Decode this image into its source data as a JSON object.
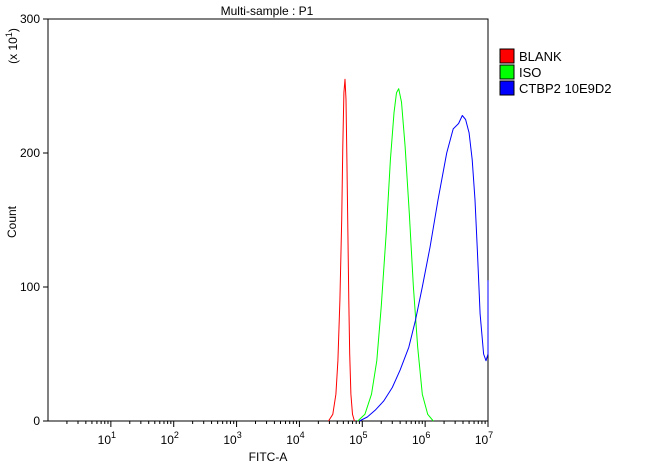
{
  "chart_data": {
    "type": "line",
    "title": "Multi-sample : P1",
    "xlabel": "FITC-A",
    "ylabel": "Count",
    "y_multiplier_label": "(x 10",
    "y_multiplier_exp": "1",
    "x_scale": "log",
    "xlim": [
      1,
      10000000
    ],
    "ylim": [
      0,
      300
    ],
    "x_ticks": [
      {
        "base": "10",
        "exp": "1",
        "value": 10
      },
      {
        "base": "10",
        "exp": "2",
        "value": 100
      },
      {
        "base": "10",
        "exp": "3",
        "value": 1000
      },
      {
        "base": "10",
        "exp": "4",
        "value": 10000
      },
      {
        "base": "10",
        "exp": "5",
        "value": 100000
      },
      {
        "base": "10",
        "exp": "6",
        "value": 1000000
      },
      {
        "base": "10",
        "exp": "7",
        "value": 10000000
      }
    ],
    "y_ticks": [
      "0",
      "100",
      "200",
      "300"
    ],
    "y_tick_values": [
      0,
      100,
      200,
      300
    ],
    "grid": false,
    "legend_position": "top-right",
    "series": [
      {
        "name": "BLANK",
        "color": "#ff0000",
        "x": [
          29000,
          34000,
          38000,
          41000,
          44000,
          47000,
          49000,
          51000,
          53000,
          55000,
          57000,
          59000,
          61000,
          63000,
          66000,
          70000,
          75000
        ],
        "y": [
          0,
          5,
          20,
          45,
          90,
          150,
          205,
          245,
          255,
          240,
          195,
          140,
          90,
          50,
          20,
          5,
          0
        ]
      },
      {
        "name": "ISO",
        "color": "#00ff00",
        "x": [
          85000,
          110000,
          140000,
          170000,
          200000,
          240000,
          280000,
          320000,
          350000,
          380000,
          420000,
          480000,
          560000,
          650000,
          760000,
          900000,
          1100000,
          1350000
        ],
        "y": [
          0,
          5,
          20,
          45,
          85,
          140,
          195,
          230,
          245,
          248,
          238,
          205,
          155,
          100,
          55,
          20,
          5,
          0
        ]
      },
      {
        "name": "CTBP2 10E9D2",
        "color": "#0000ff",
        "x": [
          90000,
          120000,
          160000,
          220000,
          300000,
          400000,
          550000,
          700000,
          900000,
          1200000,
          1600000,
          2200000,
          2800000,
          3400000,
          3900000,
          4400000,
          5000000,
          5600000,
          6200000,
          6800000,
          7500000,
          8500000,
          9300000,
          10000000,
          10000000
        ],
        "y": [
          0,
          3,
          8,
          15,
          25,
          38,
          55,
          75,
          100,
          130,
          165,
          200,
          218,
          222,
          228,
          225,
          215,
          195,
          165,
          125,
          80,
          50,
          45,
          50,
          105
        ]
      }
    ]
  }
}
